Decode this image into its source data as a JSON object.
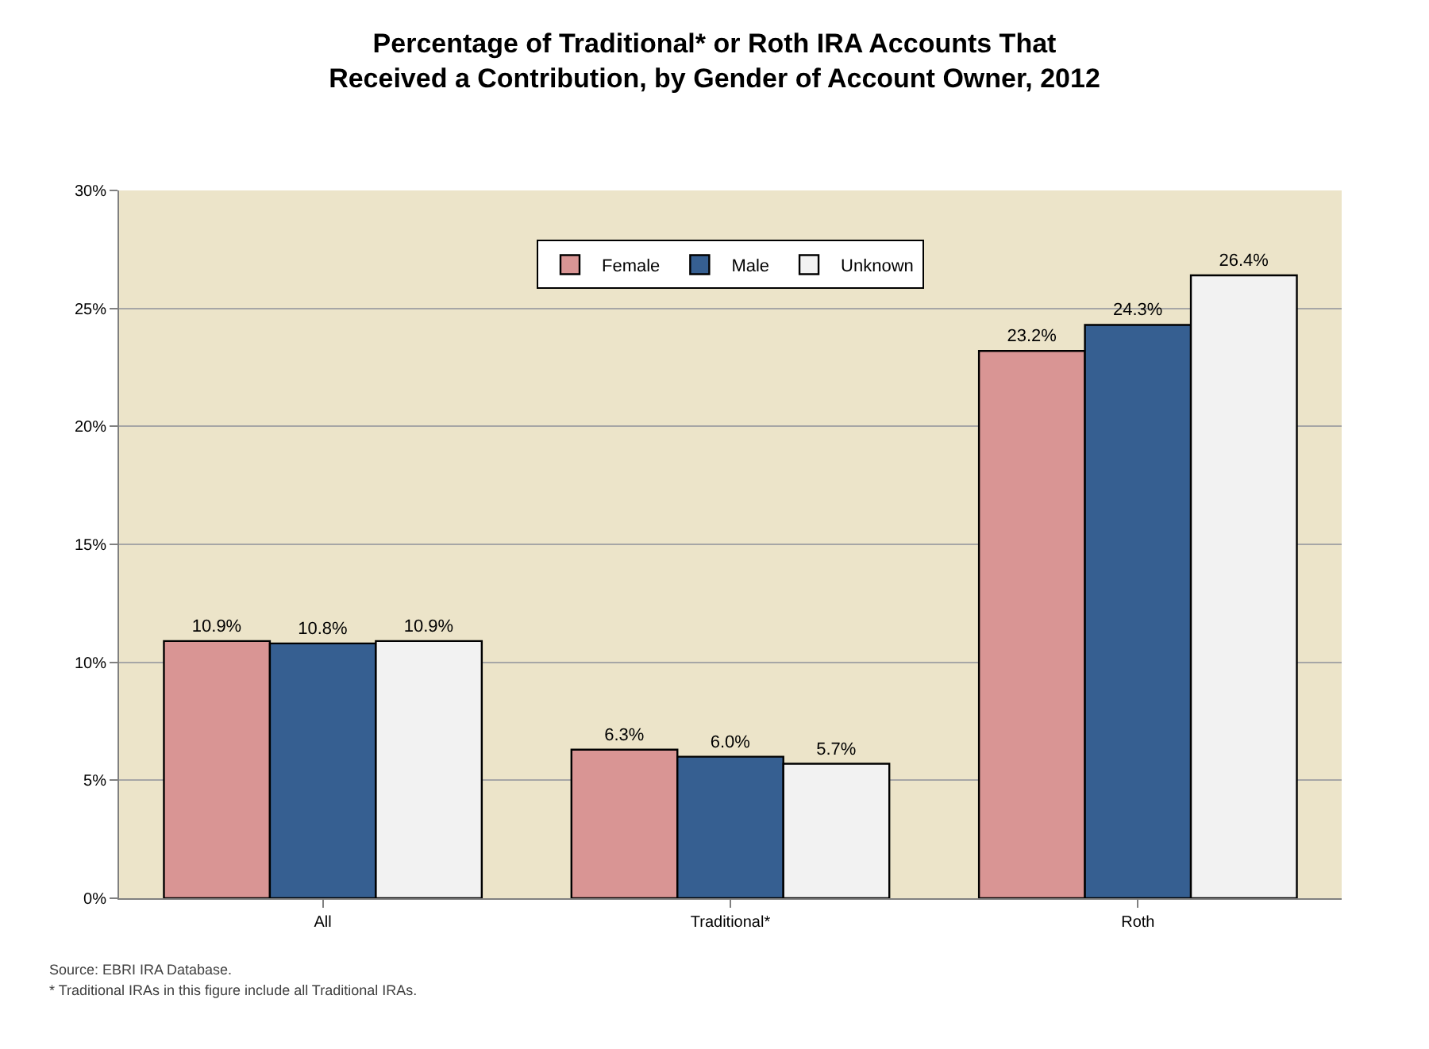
{
  "chart_data": {
    "type": "bar",
    "title": "Percentage of Traditional* or Roth IRA Accounts That\nReceived a Contribution, by Gender of Account Owner, 2012",
    "categories": [
      "All",
      "Traditional*",
      "Roth"
    ],
    "series": [
      {
        "name": "Female",
        "color": "#d99594",
        "values": [
          10.9,
          6.3,
          23.2
        ],
        "value_labels": [
          "10.9%",
          "6.3%",
          "23.2%"
        ]
      },
      {
        "name": "Male",
        "color": "#365f91",
        "values": [
          10.8,
          6.0,
          24.3
        ],
        "value_labels": [
          "10.8%",
          "6.0%",
          "24.3%"
        ]
      },
      {
        "name": "Unknown",
        "color": "#f2f2f2",
        "values": [
          10.9,
          5.7,
          26.4
        ],
        "value_labels": [
          "10.9%",
          "5.7%",
          "26.4%"
        ]
      }
    ],
    "ylim": [
      0,
      30
    ],
    "yticks": [
      {
        "value": 0,
        "label": "0%"
      },
      {
        "value": 5,
        "label": "5%"
      },
      {
        "value": 10,
        "label": "10%"
      },
      {
        "value": 15,
        "label": "15%"
      },
      {
        "value": 20,
        "label": "20%"
      },
      {
        "value": 25,
        "label": "25%"
      },
      {
        "value": 30,
        "label": "30%"
      }
    ],
    "grid": "y",
    "legend": "top",
    "annotations": [
      "Source: EBRI IRA Database.",
      "* Traditional IRAs in this figure include all Traditional IRAs."
    ]
  }
}
